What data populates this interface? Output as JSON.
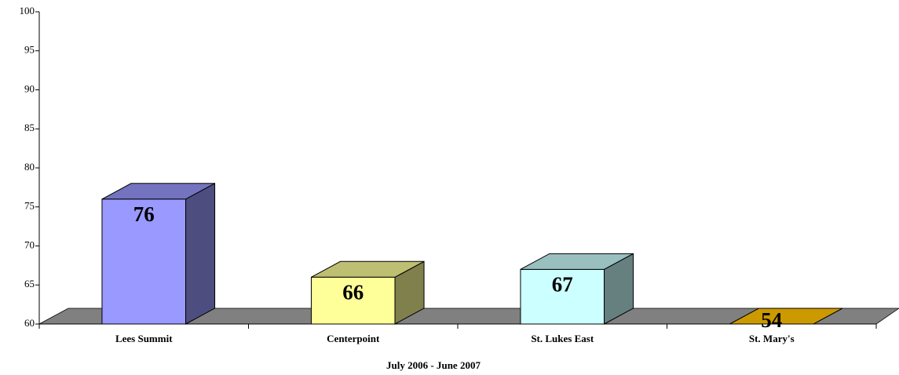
{
  "chart_data": {
    "type": "bar3d",
    "categories": [
      "Lees Summit",
      "Centerpoint",
      "St. Lukes East",
      "St. Mary's"
    ],
    "values": [
      76,
      66,
      67,
      54
    ],
    "colors": [
      "#9999ff",
      "#ffff99",
      "#ccffff",
      "#cc9900"
    ],
    "xlabel": "July 2006 - June 2007",
    "ylim": [
      60,
      100
    ],
    "yticks": [
      60,
      65,
      70,
      75,
      80,
      85,
      90,
      95,
      100
    ],
    "floor_color": "#808080"
  }
}
